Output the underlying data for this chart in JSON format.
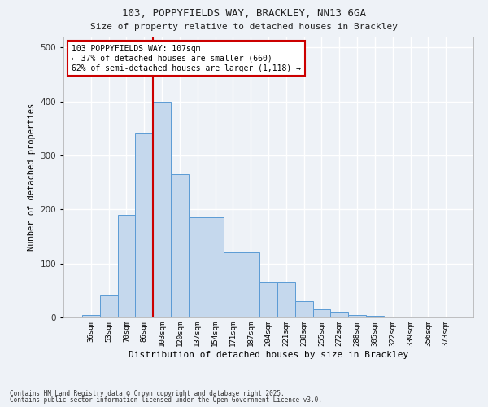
{
  "title1": "103, POPPYFIELDS WAY, BRACKLEY, NN13 6GA",
  "title2": "Size of property relative to detached houses in Brackley",
  "xlabel": "Distribution of detached houses by size in Brackley",
  "ylabel": "Number of detached properties",
  "categories": [
    "36sqm",
    "53sqm",
    "70sqm",
    "86sqm",
    "103sqm",
    "120sqm",
    "137sqm",
    "154sqm",
    "171sqm",
    "187sqm",
    "204sqm",
    "221sqm",
    "238sqm",
    "255sqm",
    "272sqm",
    "288sqm",
    "305sqm",
    "322sqm",
    "339sqm",
    "356sqm",
    "373sqm"
  ],
  "values": [
    5,
    40,
    190,
    340,
    400,
    265,
    185,
    185,
    120,
    120,
    65,
    65,
    30,
    15,
    10,
    5,
    3,
    2,
    1,
    1,
    0
  ],
  "bar_color": "#c5d8ed",
  "bar_edge_color": "#5b9bd5",
  "annotation_title": "103 POPPYFIELDS WAY: 107sqm",
  "annotation_line1": "← 37% of detached houses are smaller (660)",
  "annotation_line2": "62% of semi-detached houses are larger (1,118) →",
  "annotation_box_color": "#ffffff",
  "annotation_box_edge": "#cc0000",
  "red_line_color": "#cc0000",
  "footer1": "Contains HM Land Registry data © Crown copyright and database right 2025.",
  "footer2": "Contains public sector information licensed under the Open Government Licence v3.0.",
  "ylim": [
    0,
    520
  ],
  "bg_color": "#eef2f7",
  "grid_color": "#ffffff",
  "red_line_index": 4
}
